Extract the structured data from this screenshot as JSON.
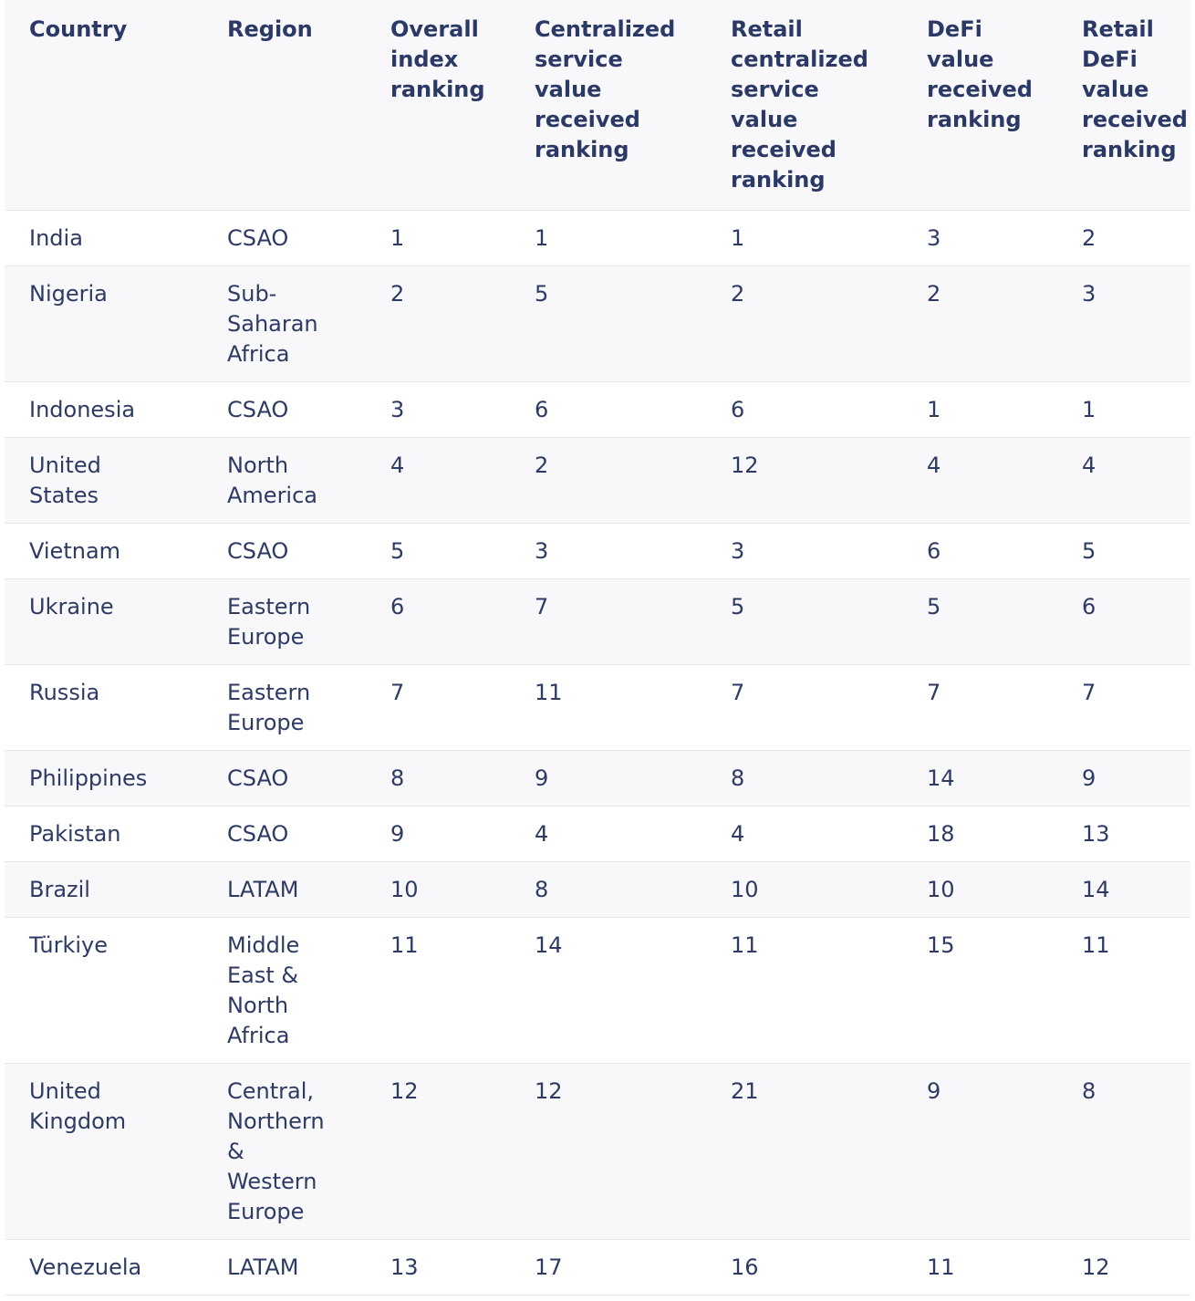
{
  "table": {
    "columns": [
      "Country",
      "Region",
      "Overall index ranking",
      "Centralized service value received ranking",
      "Retail centralized service value received ranking",
      "DeFi value received ranking",
      "Retail DeFi value received ranking"
    ],
    "rows": [
      [
        "India",
        "CSAO",
        1,
        1,
        1,
        3,
        2
      ],
      [
        "Nigeria",
        "Sub-Saharan Africa",
        2,
        5,
        2,
        2,
        3
      ],
      [
        "Indonesia",
        "CSAO",
        3,
        6,
        6,
        1,
        1
      ],
      [
        "United States",
        "North America",
        4,
        2,
        12,
        4,
        4
      ],
      [
        "Vietnam",
        "CSAO",
        5,
        3,
        3,
        6,
        5
      ],
      [
        "Ukraine",
        "Eastern Europe",
        6,
        7,
        5,
        5,
        6
      ],
      [
        "Russia",
        "Eastern Europe",
        7,
        11,
        7,
        7,
        7
      ],
      [
        "Philippines",
        "CSAO",
        8,
        9,
        8,
        14,
        9
      ],
      [
        "Pakistan",
        "CSAO",
        9,
        4,
        4,
        18,
        13
      ],
      [
        "Brazil",
        "LATAM",
        10,
        8,
        10,
        10,
        14
      ],
      [
        "Türkiye",
        "Middle East & North Africa",
        11,
        14,
        11,
        15,
        11
      ],
      [
        "United Kingdom",
        "Central, Northern & Western Europe",
        12,
        12,
        21,
        9,
        8
      ],
      [
        "Venezuela",
        "LATAM",
        13,
        17,
        16,
        11,
        12
      ]
    ]
  }
}
